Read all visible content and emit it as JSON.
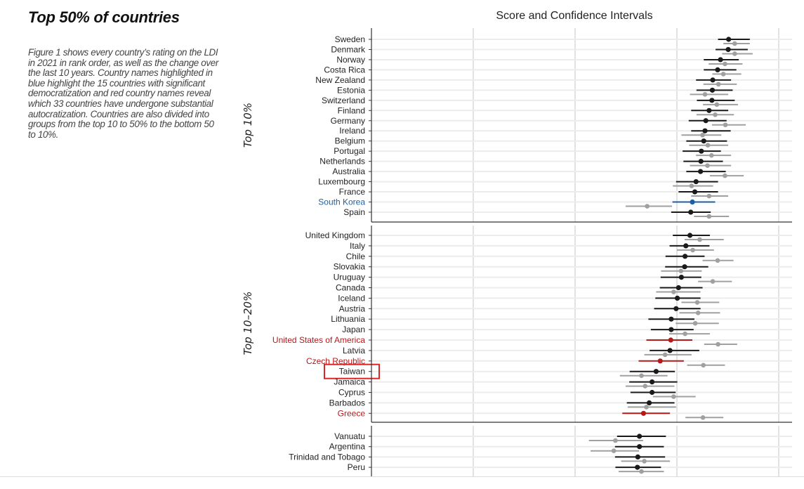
{
  "page": {
    "heading": "Top 50% of countries",
    "description": "Figure 1 shows every country’s rating on the LDI in 2021 in rank order, as well as the change over the last 10 years. Country names highlighted in blue highlight the 15 countries with significant democratization and red country names reveal which 33 countries have undergone substantial autocratization. Countries are also divided into groups from the top 10 to 50% to the bottom 50 to 10%.",
    "highlight_box_target": "Taiwan"
  },
  "colors": {
    "current": "#1a1a1a",
    "previous": "#a0a0a0",
    "democratizing": "#1d5fa3",
    "autocratizing": "#b31b1b",
    "highlight_box": "#d62828"
  },
  "chart_data": {
    "type": "dot-interval",
    "title": "Score and Confidence Intervals",
    "xlim": [
      0,
      1.03
    ],
    "x_gridlines": [
      0.25,
      0.5,
      0.75,
      1.0
    ],
    "grid": true,
    "tick_labels_shown": false,
    "series_fields": [
      "score",
      "lo",
      "hi"
    ],
    "panels": [
      {
        "group": "Top 10%",
        "rows": [
          {
            "country": "Sweden",
            "status": "none",
            "current": [
              0.877,
              0.851,
              0.929
            ],
            "previous": [
              0.892,
              0.864,
              0.929
            ]
          },
          {
            "country": "Denmark",
            "status": "none",
            "current": [
              0.876,
              0.845,
              0.924
            ],
            "previous": [
              0.892,
              0.861,
              0.936
            ]
          },
          {
            "country": "Norway",
            "status": "none",
            "current": [
              0.857,
              0.816,
              0.902
            ],
            "previous": [
              0.868,
              0.828,
              0.911
            ]
          },
          {
            "country": "Costa Rica",
            "status": "none",
            "current": [
              0.85,
              0.816,
              0.896
            ],
            "previous": [
              0.864,
              0.837,
              0.908
            ]
          },
          {
            "country": "New Zealand",
            "status": "none",
            "current": [
              0.838,
              0.797,
              0.883
            ],
            "previous": [
              0.852,
              0.815,
              0.897
            ]
          },
          {
            "country": "Estonia",
            "status": "none",
            "current": [
              0.837,
              0.798,
              0.887
            ],
            "previous": [
              0.819,
              0.782,
              0.876
            ]
          },
          {
            "country": "Switzerland",
            "status": "none",
            "current": [
              0.836,
              0.799,
              0.892
            ],
            "previous": [
              0.848,
              0.814,
              0.9
            ]
          },
          {
            "country": "Finland",
            "status": "none",
            "current": [
              0.829,
              0.785,
              0.876
            ],
            "previous": [
              0.844,
              0.798,
              0.89
            ]
          },
          {
            "country": "Germany",
            "status": "none",
            "current": [
              0.821,
              0.779,
              0.872
            ],
            "previous": [
              0.869,
              0.836,
              0.919
            ]
          },
          {
            "country": "Ireland",
            "status": "none",
            "current": [
              0.819,
              0.785,
              0.882
            ],
            "previous": [
              0.813,
              0.761,
              0.859
            ]
          },
          {
            "country": "Belgium",
            "status": "none",
            "current": [
              0.816,
              0.773,
              0.873
            ],
            "previous": [
              0.826,
              0.78,
              0.876
            ]
          },
          {
            "country": "Portugal",
            "status": "none",
            "current": [
              0.81,
              0.764,
              0.858
            ],
            "previous": [
              0.835,
              0.797,
              0.883
            ]
          },
          {
            "country": "Netherlands",
            "status": "none",
            "current": [
              0.809,
              0.766,
              0.863
            ],
            "previous": [
              0.825,
              0.782,
              0.883
            ]
          },
          {
            "country": "Australia",
            "status": "none",
            "current": [
              0.808,
              0.773,
              0.87
            ],
            "previous": [
              0.868,
              0.831,
              0.914
            ]
          },
          {
            "country": "Luxembourg",
            "status": "none",
            "current": [
              0.797,
              0.748,
              0.851
            ],
            "previous": [
              0.786,
              0.74,
              0.839
            ]
          },
          {
            "country": "France",
            "status": "none",
            "current": [
              0.794,
              0.754,
              0.851
            ],
            "previous": [
              0.829,
              0.785,
              0.876
            ]
          },
          {
            "country": "South Korea",
            "status": "democratizing",
            "current": [
              0.788,
              0.739,
              0.844
            ],
            "previous": [
              0.677,
              0.624,
              0.738
            ]
          },
          {
            "country": "Spain",
            "status": "none",
            "current": [
              0.784,
              0.736,
              0.833
            ],
            "previous": [
              0.829,
              0.792,
              0.878
            ]
          }
        ]
      },
      {
        "group": "Top 10–20%",
        "rows": [
          {
            "country": "United Kingdom",
            "status": "none",
            "current": [
              0.782,
              0.74,
              0.831
            ],
            "previous": [
              0.806,
              0.769,
              0.865
            ]
          },
          {
            "country": "Italy",
            "status": "none",
            "current": [
              0.772,
              0.732,
              0.83
            ],
            "previous": [
              0.789,
              0.75,
              0.841
            ]
          },
          {
            "country": "Chile",
            "status": "none",
            "current": [
              0.77,
              0.722,
              0.818
            ],
            "previous": [
              0.85,
              0.813,
              0.889
            ]
          },
          {
            "country": "Slovakia",
            "status": "none",
            "current": [
              0.769,
              0.721,
              0.827
            ],
            "previous": [
              0.76,
              0.711,
              0.811
            ]
          },
          {
            "country": "Uruguay",
            "status": "none",
            "current": [
              0.761,
              0.71,
              0.81
            ],
            "previous": [
              0.838,
              0.802,
              0.885
            ]
          },
          {
            "country": "Canada",
            "status": "none",
            "current": [
              0.754,
              0.708,
              0.813
            ],
            "previous": [
              0.742,
              0.699,
              0.808
            ]
          },
          {
            "country": "Iceland",
            "status": "none",
            "current": [
              0.751,
              0.697,
              0.808
            ],
            "previous": [
              0.8,
              0.761,
              0.854
            ]
          },
          {
            "country": "Austria",
            "status": "none",
            "current": [
              0.748,
              0.694,
              0.808
            ],
            "previous": [
              0.802,
              0.756,
              0.856
            ]
          },
          {
            "country": "Lithuania",
            "status": "none",
            "current": [
              0.736,
              0.68,
              0.793
            ],
            "previous": [
              0.795,
              0.747,
              0.853
            ]
          },
          {
            "country": "Japan",
            "status": "none",
            "current": [
              0.736,
              0.686,
              0.791
            ],
            "previous": [
              0.77,
              0.731,
              0.831
            ]
          },
          {
            "country": "United States of America",
            "status": "autocratizing",
            "current": [
              0.735,
              0.675,
              0.788
            ],
            "previous": [
              0.851,
              0.817,
              0.898
            ]
          },
          {
            "country": "Latvia",
            "status": "none",
            "current": [
              0.733,
              0.683,
              0.805
            ],
            "previous": [
              0.721,
              0.67,
              0.786
            ]
          },
          {
            "country": "Czech Republic",
            "status": "autocratizing",
            "current": [
              0.709,
              0.656,
              0.767
            ],
            "previous": [
              0.815,
              0.775,
              0.868
            ]
          },
          {
            "country": "Taiwan",
            "status": "none",
            "current": [
              0.699,
              0.634,
              0.745
            ],
            "previous": [
              0.663,
              0.61,
              0.727
            ]
          },
          {
            "country": "Jamaica",
            "status": "none",
            "current": [
              0.689,
              0.633,
              0.751
            ],
            "previous": [
              0.672,
              0.624,
              0.744
            ]
          },
          {
            "country": "Cyprus",
            "status": "none",
            "current": [
              0.689,
              0.636,
              0.747
            ],
            "previous": [
              0.742,
              0.691,
              0.796
            ]
          },
          {
            "country": "Barbados",
            "status": "none",
            "current": [
              0.682,
              0.627,
              0.744
            ],
            "previous": [
              0.675,
              0.629,
              0.748
            ]
          },
          {
            "country": "Greece",
            "status": "autocratizing",
            "current": [
              0.668,
              0.616,
              0.733
            ],
            "previous": [
              0.814,
              0.771,
              0.864
            ]
          }
        ]
      },
      {
        "group": "",
        "rows": [
          {
            "country": "Vanuatu",
            "status": "none",
            "current": [
              0.658,
              0.603,
              0.723
            ],
            "previous": [
              0.599,
              0.534,
              0.667
            ]
          },
          {
            "country": "Argentina",
            "status": "none",
            "current": [
              0.658,
              0.598,
              0.718
            ],
            "previous": [
              0.595,
              0.538,
              0.657
            ]
          },
          {
            "country": "Trinidad and Tobago",
            "status": "none",
            "current": [
              0.654,
              0.598,
              0.721
            ],
            "previous": [
              0.67,
              0.613,
              0.733
            ]
          },
          {
            "country": "Peru",
            "status": "none",
            "current": [
              0.653,
              0.599,
              0.711
            ],
            "previous": [
              0.663,
              0.607,
              0.718
            ]
          }
        ]
      }
    ]
  }
}
